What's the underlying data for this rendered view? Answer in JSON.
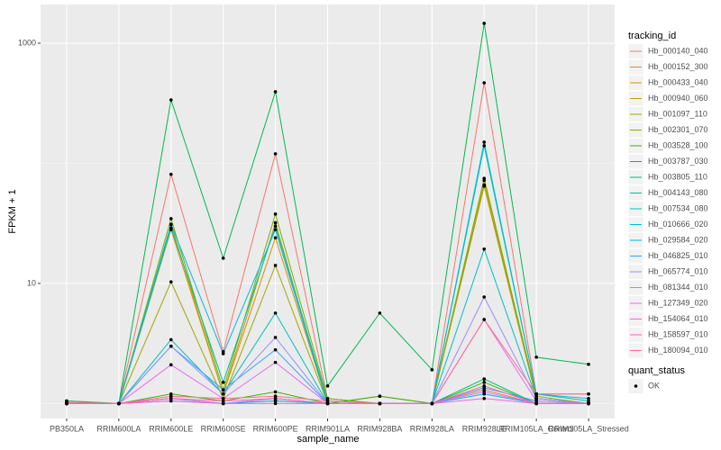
{
  "chart_data": {
    "type": "line",
    "log_y": true,
    "grid": true,
    "ylabel": "FPKM + 1",
    "xlabel": "sample_name",
    "legend_title": "tracking_id",
    "point_legend": {
      "title": "quant_status",
      "labels": [
        "OK"
      ],
      "color": "#000000"
    },
    "categories": [
      "PB350LA",
      "RRIM600LA",
      "RRIM600LE",
      "RRIM600SE",
      "RRIM600PE",
      "RRIM901LA",
      "RRIM928BA",
      "RRIM928LA",
      "RRIM928LE",
      "RRIM105LA_Control",
      "RRIM105LA_Stressed"
    ],
    "ylim": [
      0.75,
      2100
    ],
    "yticks": [
      10,
      1000
    ],
    "series": [
      {
        "name": "Hb_000140_040",
        "color": "#F8766D",
        "values": [
          1.05,
          1,
          81,
          2.7,
          120,
          1.1,
          1,
          1,
          468,
          1.2,
          1.2
        ]
      },
      {
        "name": "Hb_000152_300",
        "color": "#EA8331",
        "values": [
          1,
          1,
          1.1,
          1,
          1.05,
          1,
          1,
          1,
          1.3,
          1,
          1
        ]
      },
      {
        "name": "Hb_000433_040",
        "color": "#D89000",
        "values": [
          1,
          1,
          28,
          1.2,
          24,
          1,
          1,
          1,
          64.5,
          1.1,
          1
        ]
      },
      {
        "name": "Hb_000940_060",
        "color": "#C09B00",
        "values": [
          1,
          1,
          31,
          1.2,
          32,
          1,
          1,
          1,
          72,
          1.1,
          1
        ]
      },
      {
        "name": "Hb_001097_110",
        "color": "#A3A500",
        "values": [
          1,
          1,
          10.3,
          1.1,
          14.1,
          1,
          1.15,
          1,
          66,
          1.1,
          1
        ]
      },
      {
        "name": "Hb_002301_070",
        "color": "#7CAE00",
        "values": [
          1,
          1,
          34.6,
          1.3,
          37.8,
          1.1,
          1,
          1,
          75,
          1.15,
          1
        ]
      },
      {
        "name": "Hb_003528_100",
        "color": "#39B600",
        "values": [
          1,
          1,
          1.2,
          1.05,
          1.25,
          1,
          1.15,
          1,
          1.5,
          1,
          1
        ]
      },
      {
        "name": "Hb_003787_030",
        "color": "#00BB4E",
        "values": [
          1.05,
          1,
          337,
          16.2,
          394,
          1.4,
          5.66,
          1.91,
          1462,
          2.43,
          2.12
        ]
      },
      {
        "name": "Hb_003805_110",
        "color": "#00BF7D",
        "values": [
          1,
          1,
          1.1,
          1,
          1.1,
          1,
          1,
          1,
          1.6,
          1,
          1
        ]
      },
      {
        "name": "Hb_004143_080",
        "color": "#00C1A3",
        "values": [
          1,
          1,
          29,
          1.5,
          30,
          1.05,
          1,
          1,
          140,
          1.2,
          1.05
        ]
      },
      {
        "name": "Hb_007534_080",
        "color": "#00BFC4",
        "values": [
          1,
          1,
          3.4,
          1.2,
          5.66,
          1,
          1,
          1,
          19.3,
          1.1,
          1
        ]
      },
      {
        "name": "Hb_010666_020",
        "color": "#00BAE0",
        "values": [
          1,
          1,
          31,
          2.6,
          28,
          1,
          1,
          1,
          150,
          1.2,
          1.1
        ]
      },
      {
        "name": "Hb_029584_020",
        "color": "#00B0F6",
        "values": [
          1,
          1,
          1.05,
          1,
          1.05,
          1,
          1,
          1,
          1.2,
          1,
          1
        ]
      },
      {
        "name": "Hb_046825_010",
        "color": "#35A2FF",
        "values": [
          1,
          1,
          3.0,
          1.3,
          2.8,
          1,
          1,
          1,
          1.35,
          1.05,
          1
        ]
      },
      {
        "name": "Hb_065774_010",
        "color": "#9590FF",
        "values": [
          1,
          1,
          3.0,
          1.2,
          3.55,
          1,
          1,
          1,
          7.7,
          1.1,
          1
        ]
      },
      {
        "name": "Hb_081344_010",
        "color": "#C77CFF",
        "values": [
          1,
          1,
          1.1,
          1,
          1.1,
          1,
          1,
          1,
          1.25,
          1,
          1
        ]
      },
      {
        "name": "Hb_127349_020",
        "color": "#E76BF3",
        "values": [
          1,
          1,
          2.1,
          1.1,
          2.2,
          1,
          1,
          1,
          5,
          1.05,
          1
        ]
      },
      {
        "name": "Hb_154064_010",
        "color": "#FA62DB",
        "values": [
          1,
          1,
          1.05,
          1,
          1,
          1,
          1,
          1,
          1.1,
          1,
          1
        ]
      },
      {
        "name": "Hb_158597_010",
        "color": "#FF62BC",
        "values": [
          1,
          1,
          1.1,
          1.05,
          1.1,
          1,
          1,
          1,
          1.4,
          1,
          1
        ]
      },
      {
        "name": "Hb_180094_010",
        "color": "#FF6C91",
        "values": [
          1.02,
          1,
          1.15,
          1.1,
          1.15,
          1.05,
          1,
          1,
          5,
          1.2,
          1.2
        ]
      }
    ]
  }
}
